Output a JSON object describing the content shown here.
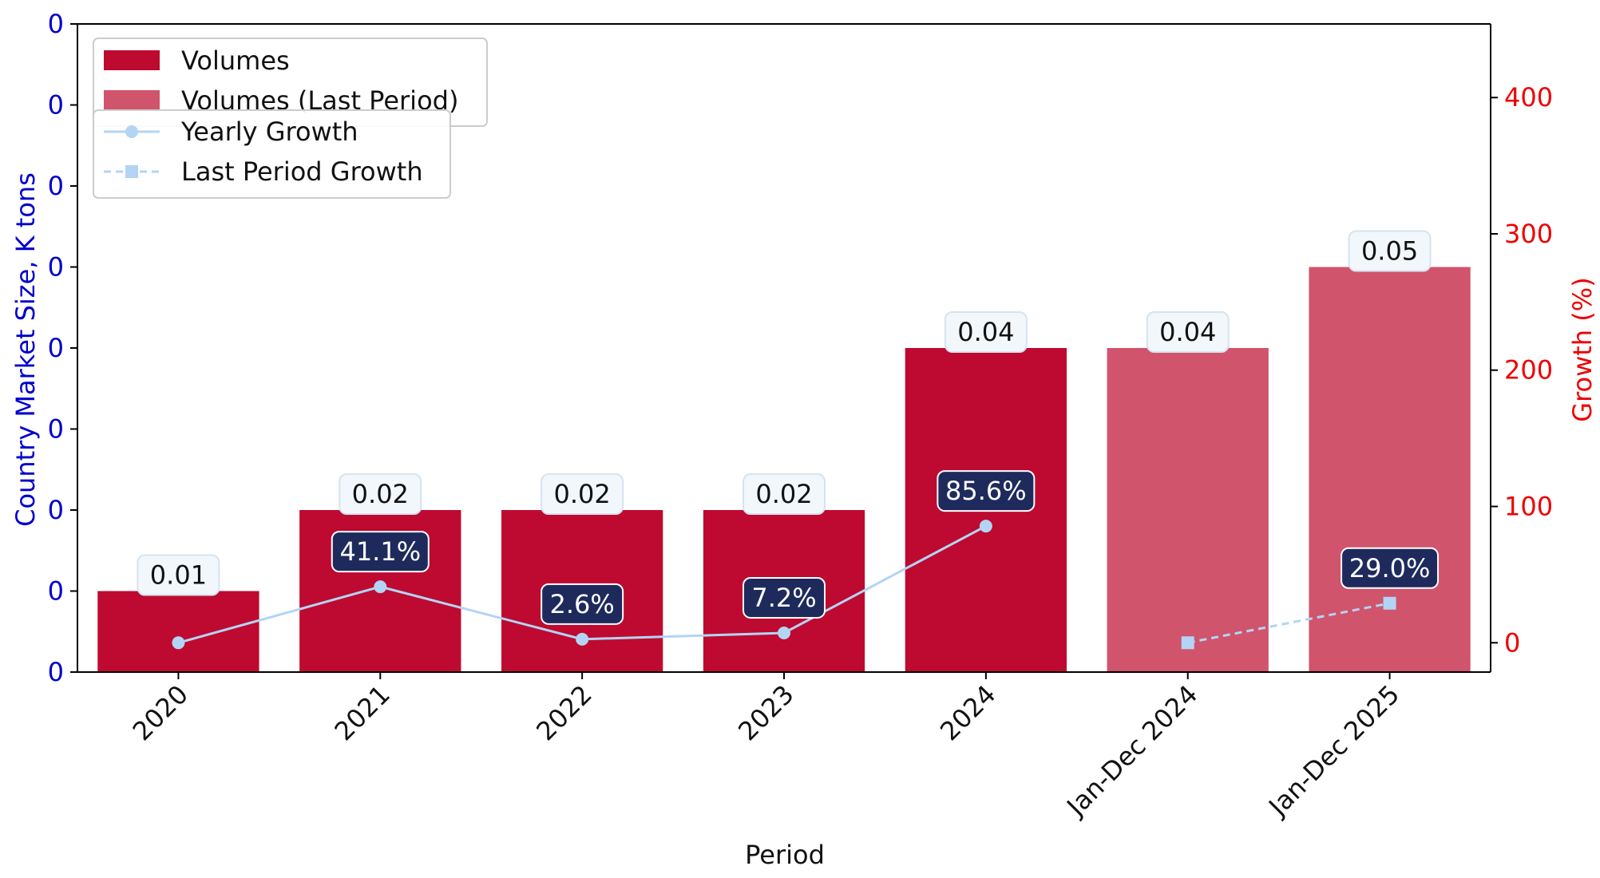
{
  "chart_data": {
    "type": "bar",
    "categories": [
      "2020",
      "2021",
      "2022",
      "2023",
      "2024",
      "Jan-Dec 2024",
      "Jan-Dec 2025"
    ],
    "series": [
      {
        "name": "Volumes",
        "kind": "bar",
        "values": [
          0.01,
          0.02,
          0.02,
          0.02,
          0.04,
          null,
          null
        ],
        "labels": [
          "0.01",
          "0.02",
          "0.02",
          "0.02",
          "0.04",
          "",
          ""
        ]
      },
      {
        "name": "Volumes (Last Period)",
        "kind": "bar",
        "values": [
          null,
          null,
          null,
          null,
          null,
          0.04,
          0.05
        ],
        "labels": [
          "",
          "",
          "",
          "",
          "",
          "0.04",
          "0.05"
        ]
      },
      {
        "name": "Yearly Growth",
        "kind": "line",
        "axis": "right",
        "values": [
          0,
          41.1,
          2.6,
          7.2,
          85.6,
          null,
          null
        ],
        "labels": [
          "",
          "41.1%",
          "2.6%",
          "7.2%",
          "85.6%",
          "",
          ""
        ]
      },
      {
        "name": "Last Period Growth",
        "kind": "line",
        "axis": "right",
        "values": [
          null,
          null,
          null,
          null,
          null,
          0,
          29.0
        ],
        "labels": [
          "",
          "",
          "",
          "",
          "",
          "",
          "29.0%"
        ]
      }
    ],
    "xlabel": "Period",
    "ylabel": "Country Market Size, K tons",
    "y2label": "Growth (%)",
    "ylim": [
      0,
      0.08
    ],
    "y_ticks": [
      0,
      0.01,
      0.02,
      0.03,
      0.04,
      0.05,
      0.06,
      0.07,
      0.08
    ],
    "y_tick_labels": [
      "0",
      "0",
      "0",
      "0",
      "0",
      "0",
      "0",
      "0",
      "0"
    ],
    "y2lim": [
      -21.5,
      454
    ],
    "y2_ticks": [
      0,
      100,
      200,
      300,
      400
    ],
    "y2_tick_labels": [
      "0",
      "100",
      "200",
      "300",
      "400"
    ],
    "grid": false,
    "legend_placement": "top-left",
    "colors": {
      "bar": "#be0a30",
      "bar_last": "#d0546c",
      "line": "#b3d4f5",
      "growth_label_bg": "#1f2a5c",
      "value_label_bg": "#f2f7fc",
      "left_axis": "#0000cc",
      "right_axis": "#ee0000"
    }
  }
}
